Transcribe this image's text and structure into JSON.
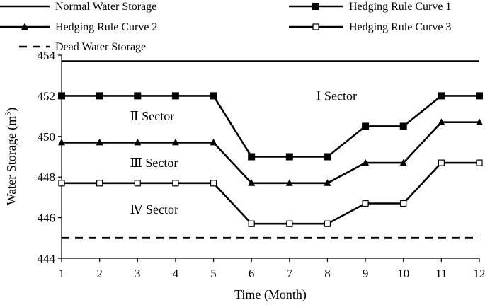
{
  "chart_data": {
    "type": "line",
    "title": "",
    "xlabel": "Time (Month)",
    "ylabel": "Water Storage (m³)",
    "ylabel_main": "Water Storage (m",
    "ylabel_sup": "3",
    "ylabel_close": ")",
    "x": [
      1,
      2,
      3,
      4,
      5,
      6,
      7,
      8,
      9,
      10,
      11,
      12
    ],
    "xlim": [
      1,
      12
    ],
    "ylim": [
      444,
      454
    ],
    "yticks": [
      444,
      446,
      448,
      450,
      452,
      454
    ],
    "legend_position": "top",
    "grid": false,
    "series": [
      {
        "name": "Normal Water Storage",
        "style": "solid",
        "marker": "none",
        "values": [
          453.7,
          453.7,
          453.7,
          453.7,
          453.7,
          453.7,
          453.7,
          453.7,
          453.7,
          453.7,
          453.7,
          453.7
        ]
      },
      {
        "name": "Hedging Rule Curve 1",
        "style": "solid",
        "marker": "filled-square",
        "values": [
          452,
          452,
          452,
          452,
          452,
          449,
          449,
          449,
          450.5,
          450.5,
          452,
          452
        ]
      },
      {
        "name": "Hedging Rule Curve 2",
        "style": "solid",
        "marker": "filled-triangle",
        "values": [
          449.7,
          449.7,
          449.7,
          449.7,
          449.7,
          447.7,
          447.7,
          447.7,
          448.7,
          448.7,
          450.7,
          450.7
        ]
      },
      {
        "name": "Hedging Rule Curve 3",
        "style": "solid",
        "marker": "open-square",
        "values": [
          447.7,
          447.7,
          447.7,
          447.7,
          447.7,
          445.7,
          445.7,
          445.7,
          446.7,
          446.7,
          448.7,
          448.7
        ]
      },
      {
        "name": "Dead Water Storage",
        "style": "dashed",
        "marker": "none",
        "values": [
          445,
          445,
          445,
          445,
          445,
          445,
          445,
          445,
          445,
          445,
          445,
          445
        ]
      }
    ],
    "annotations": [
      {
        "text": "Ⅰ Sector",
        "x": 7.7,
        "y": 452
      },
      {
        "text": "Ⅱ  Sector",
        "x": 2.8,
        "y": 451
      },
      {
        "text": "Ⅲ  Sector",
        "x": 2.8,
        "y": 448.7
      },
      {
        "text": "Ⅳ  Sector",
        "x": 2.8,
        "y": 446.4
      }
    ],
    "colors": {
      "line": "#000000",
      "background": "#ffffff"
    }
  }
}
